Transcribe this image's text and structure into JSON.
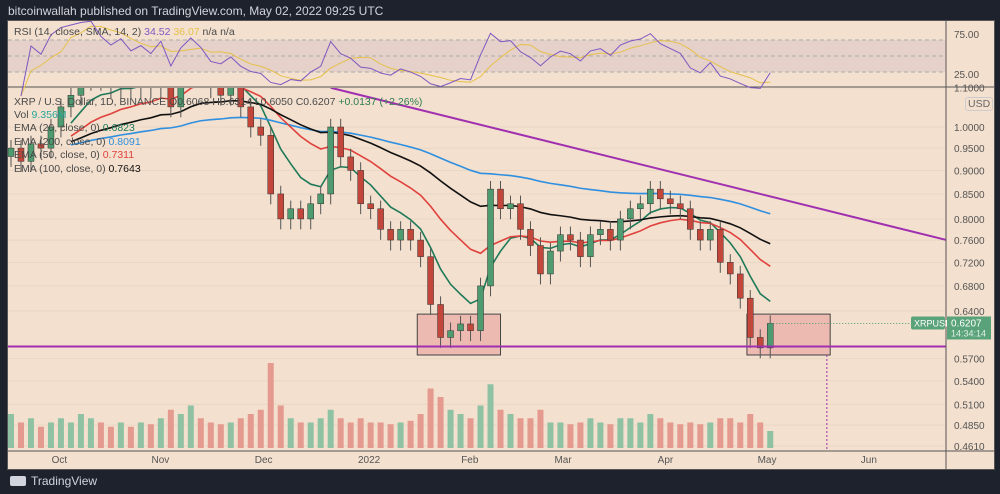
{
  "header": {
    "published": "bitcoinwallah published on TradingView.com, May 02, 2022 09:25 UTC"
  },
  "rsi": {
    "label": "RSI (14, close, SMA, 14, 2)",
    "value": "34.52",
    "sma": "36.07",
    "na1": "n/a",
    "na2": "n/a",
    "levels": [
      "75.00",
      "25.00"
    ]
  },
  "legend": {
    "symbol": "XRP / U.S. Dollar, 1D, BINANCE",
    "ohlc": "O0.6068 H0.6314 L0.6050 C0.6207",
    "change": "+0.0137 (+2.26%)",
    "vol_label": "Vol",
    "vol_value": "9.356M",
    "emas": [
      {
        "label": "EMA (20, close, 0)",
        "value": "0.6823",
        "color": "#1f7a5a"
      },
      {
        "label": "EMA (200, close, 0)",
        "value": "0.8091",
        "color": "#2f8fe0"
      },
      {
        "label": "EMA (50, close, 0)",
        "value": "0.7311",
        "color": "#e0413d"
      },
      {
        "label": "EMA (100, close, 0)",
        "value": "0.7643",
        "color": "#111111"
      }
    ]
  },
  "price_axis": {
    "currency": "USD",
    "ticks": [
      "1.1000",
      "1.0000",
      "0.9500",
      "0.9000",
      "0.8500",
      "0.8000",
      "0.7600",
      "0.7200",
      "0.6800",
      "0.6400",
      "0.5700",
      "0.5400",
      "0.5100",
      "0.4850",
      "0.4610"
    ]
  },
  "last_price": {
    "symbol": "XRPUSD",
    "price": "0.6207",
    "countdown": "14:34:14"
  },
  "time_axis": [
    "Oct",
    "Nov",
    "Dec",
    "2022",
    "Feb",
    "Mar",
    "Apr",
    "May",
    "Jun"
  ],
  "footer": {
    "brand": "TradingView"
  },
  "colors": {
    "up": "#4d9b6e",
    "down": "#c2473a",
    "trend": "#a030b0",
    "box": "#e89a9a"
  },
  "chart_data": {
    "type": "candlestick",
    "title": "XRP / U.S. Dollar, 1D, BINANCE",
    "start_date": "2021-09-17",
    "candle_days": 3,
    "closes": [
      0.95,
      0.92,
      0.96,
      0.95,
      1.0,
      1.05,
      1.08,
      1.12,
      1.15,
      1.12,
      1.1,
      1.13,
      1.1,
      1.12,
      1.1,
      1.15,
      1.05,
      1.15,
      1.25,
      1.2,
      1.1,
      1.08,
      1.12,
      1.05,
      1.0,
      0.98,
      0.85,
      0.8,
      0.82,
      0.8,
      0.83,
      0.85,
      1.0,
      0.93,
      0.9,
      0.83,
      0.82,
      0.78,
      0.76,
      0.78,
      0.76,
      0.73,
      0.65,
      0.6,
      0.61,
      0.62,
      0.61,
      0.68,
      0.86,
      0.82,
      0.83,
      0.78,
      0.75,
      0.7,
      0.74,
      0.77,
      0.76,
      0.73,
      0.77,
      0.78,
      0.76,
      0.8,
      0.82,
      0.83,
      0.86,
      0.84,
      0.83,
      0.82,
      0.78,
      0.76,
      0.78,
      0.72,
      0.7,
      0.66,
      0.6,
      0.585,
      0.6207
    ],
    "volume": [
      40,
      30,
      35,
      25,
      30,
      35,
      30,
      40,
      35,
      30,
      25,
      30,
      25,
      30,
      28,
      35,
      45,
      40,
      50,
      35,
      30,
      28,
      30,
      35,
      40,
      45,
      100,
      50,
      35,
      30,
      30,
      35,
      45,
      35,
      30,
      35,
      30,
      30,
      28,
      30,
      32,
      40,
      70,
      60,
      45,
      40,
      35,
      50,
      75,
      45,
      40,
      35,
      35,
      45,
      30,
      30,
      28,
      30,
      35,
      30,
      28,
      35,
      35,
      30,
      40,
      35,
      30,
      28,
      30,
      28,
      30,
      35,
      35,
      30,
      40,
      30,
      20
    ],
    "trendline": [
      {
        "day": 96,
        "price": 1.1
      },
      {
        "day": 281,
        "price": 0.76
      }
    ],
    "support": 0.587,
    "boxes": [
      {
        "from_day": 122,
        "to_day": 147,
        "low": 0.575,
        "high": 0.635
      },
      {
        "from_day": 221,
        "to_day": 246,
        "low": 0.575,
        "high": 0.635
      }
    ],
    "projection_day": 245,
    "y_scale": "log",
    "ylim": [
      0.461,
      1.1
    ]
  }
}
